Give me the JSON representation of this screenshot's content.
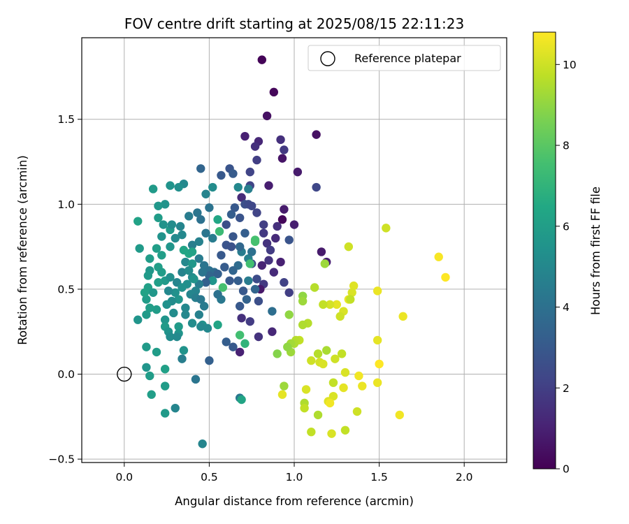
{
  "chart_data": {
    "type": "scatter",
    "title": "FOV centre drift starting at 2025/08/15 22:11:23",
    "xlabel": "Angular distance from reference (arcmin)",
    "ylabel": "Rotation from reference (arcmin)",
    "xlim": [
      -0.25,
      2.25
    ],
    "ylim": [
      -0.52,
      1.98
    ],
    "xticks": [
      0.0,
      0.5,
      1.0,
      1.5,
      2.0
    ],
    "xtick_labels": [
      "0.0",
      "0.5",
      "1.0",
      "1.5",
      "2.0"
    ],
    "yticks": [
      -0.5,
      0.0,
      0.5,
      1.0,
      1.5
    ],
    "ytick_labels": [
      "−0.5",
      "0.0",
      "0.5",
      "1.0",
      "1.5"
    ],
    "grid": true,
    "legend_position": "top-right",
    "legend": [
      "Reference platepar"
    ],
    "reference_point": {
      "x": 0.0,
      "y": 0.0
    },
    "colorbar": {
      "label": "Hours from first FF file",
      "range": [
        0,
        10.8
      ],
      "ticks": [
        0,
        2,
        4,
        6,
        8,
        10
      ],
      "tick_labels": [
        "0",
        "2",
        "4",
        "6",
        "8",
        "10"
      ],
      "colormap": "viridis"
    },
    "points": [
      [
        0.81,
        1.85,
        0.1
      ],
      [
        0.88,
        1.66,
        0.2
      ],
      [
        0.84,
        1.52,
        0.5
      ],
      [
        0.71,
        1.4,
        1.0
      ],
      [
        0.79,
        1.37,
        1.2
      ],
      [
        1.13,
        1.41,
        0.5
      ],
      [
        0.92,
        1.38,
        1.5
      ],
      [
        0.93,
        1.27,
        0.6
      ],
      [
        0.94,
        1.32,
        1.8
      ],
      [
        1.02,
        1.19,
        0.8
      ],
      [
        1.13,
        1.1,
        2.3
      ],
      [
        0.77,
        1.34,
        1.5
      ],
      [
        0.78,
        1.26,
        2.0
      ],
      [
        0.74,
        1.19,
        2.2
      ],
      [
        0.62,
        1.21,
        2.8
      ],
      [
        0.64,
        1.18,
        3.1
      ],
      [
        0.57,
        1.17,
        3.0
      ],
      [
        0.45,
        1.21,
        3.5
      ],
      [
        0.85,
        1.11,
        0.9
      ],
      [
        0.74,
        1.11,
        2.2
      ],
      [
        0.69,
        1.04,
        1.3
      ],
      [
        0.73,
        1.09,
        4.6
      ],
      [
        0.67,
        1.1,
        5.0
      ],
      [
        0.52,
        1.1,
        5.2
      ],
      [
        0.48,
        1.06,
        4.8
      ],
      [
        0.35,
        1.12,
        5.0
      ],
      [
        0.32,
        1.1,
        5.3
      ],
      [
        0.27,
        1.11,
        5.5
      ],
      [
        0.17,
        1.09,
        5.8
      ],
      [
        0.24,
        1.0,
        5.5
      ],
      [
        0.2,
        0.99,
        5.7
      ],
      [
        0.08,
        0.9,
        6.2
      ],
      [
        0.2,
        0.92,
        5.9
      ],
      [
        0.23,
        0.88,
        5.5
      ],
      [
        0.27,
        0.85,
        5.8
      ],
      [
        0.28,
        0.88,
        5.2
      ],
      [
        0.33,
        0.87,
        4.9
      ],
      [
        0.38,
        0.93,
        4.5
      ],
      [
        0.43,
        0.95,
        4.2
      ],
      [
        0.45,
        0.91,
        4.0
      ],
      [
        0.5,
        0.98,
        4.1
      ],
      [
        0.48,
        0.83,
        4.2
      ],
      [
        0.55,
        0.91,
        6.4
      ],
      [
        0.56,
        0.84,
        7.3
      ],
      [
        0.52,
        0.8,
        4.5
      ],
      [
        0.44,
        0.78,
        4.7
      ],
      [
        0.4,
        0.76,
        4.6
      ],
      [
        0.34,
        0.82,
        5.0
      ],
      [
        0.3,
        0.8,
        5.1
      ],
      [
        0.27,
        0.75,
        5.6
      ],
      [
        0.22,
        0.81,
        5.5
      ],
      [
        0.22,
        0.7,
        6.0
      ],
      [
        0.19,
        0.74,
        6.0
      ],
      [
        0.09,
        0.74,
        5.8
      ],
      [
        0.15,
        0.68,
        5.9
      ],
      [
        0.15,
        0.61,
        5.7
      ],
      [
        0.14,
        0.58,
        5.8
      ],
      [
        0.2,
        0.63,
        6.0
      ],
      [
        0.22,
        0.6,
        5.9
      ],
      [
        0.24,
        0.55,
        5.8
      ],
      [
        0.27,
        0.57,
        5.3
      ],
      [
        0.31,
        0.54,
        4.9
      ],
      [
        0.34,
        0.6,
        4.8
      ],
      [
        0.36,
        0.66,
        5.0
      ],
      [
        0.38,
        0.71,
        6.4
      ],
      [
        0.4,
        0.72,
        6.2
      ],
      [
        0.35,
        0.73,
        6.3
      ],
      [
        0.44,
        0.68,
        4.5
      ],
      [
        0.47,
        0.64,
        4.2
      ],
      [
        0.5,
        0.61,
        4.0
      ],
      [
        0.53,
        0.6,
        3.8
      ],
      [
        0.5,
        0.58,
        3.5
      ],
      [
        0.55,
        0.59,
        3.3
      ],
      [
        0.59,
        0.63,
        3.1
      ],
      [
        0.57,
        0.7,
        3.0
      ],
      [
        0.6,
        0.76,
        2.8
      ],
      [
        0.63,
        0.75,
        2.7
      ],
      [
        0.6,
        0.88,
        2.6
      ],
      [
        0.63,
        0.94,
        3.2
      ],
      [
        0.65,
        0.98,
        3.0
      ],
      [
        0.68,
        0.92,
        2.8
      ],
      [
        0.71,
        1.0,
        2.6
      ],
      [
        0.73,
        1.0,
        2.4
      ],
      [
        0.75,
        0.99,
        2.3
      ],
      [
        0.78,
        0.95,
        2.2
      ],
      [
        0.82,
        0.88,
        2.0
      ],
      [
        0.82,
        0.83,
        1.8
      ],
      [
        0.84,
        0.77,
        1.6
      ],
      [
        0.86,
        0.73,
        1.9
      ],
      [
        0.89,
        0.8,
        1.3
      ],
      [
        0.9,
        0.87,
        1.5
      ],
      [
        0.93,
        0.91,
        0.2
      ],
      [
        0.94,
        0.97,
        0.8
      ],
      [
        1.0,
        0.88,
        0.9
      ],
      [
        0.97,
        0.79,
        2.8
      ],
      [
        0.97,
        0.48,
        2.0
      ],
      [
        0.94,
        0.54,
        2.1
      ],
      [
        0.92,
        0.66,
        1.0
      ],
      [
        0.88,
        0.6,
        1.3
      ],
      [
        0.85,
        0.67,
        1.6
      ],
      [
        0.81,
        0.64,
        1.1
      ],
      [
        0.82,
        0.53,
        1.8
      ],
      [
        0.8,
        0.5,
        0.7
      ],
      [
        0.78,
        0.56,
        2.5
      ],
      [
        0.75,
        0.65,
        2.6
      ],
      [
        0.73,
        0.68,
        4.7
      ],
      [
        0.75,
        0.72,
        4.0
      ],
      [
        0.77,
        0.78,
        7.6
      ],
      [
        0.69,
        0.72,
        4.5
      ],
      [
        0.67,
        0.64,
        3.8
      ],
      [
        0.64,
        0.61,
        3.5
      ],
      [
        0.62,
        0.55,
        3.0
      ],
      [
        0.67,
        0.55,
        3.2
      ],
      [
        0.7,
        0.49,
        3.0
      ],
      [
        0.73,
        0.55,
        4.5
      ],
      [
        0.77,
        0.5,
        3.5
      ],
      [
        0.72,
        0.44,
        3.4
      ],
      [
        0.68,
        0.4,
        3.0
      ],
      [
        0.69,
        0.33,
        1.5
      ],
      [
        0.74,
        0.31,
        1.9
      ],
      [
        0.79,
        0.22,
        1.6
      ],
      [
        0.87,
        0.25,
        1.2
      ],
      [
        0.87,
        0.37,
        3.9
      ],
      [
        0.79,
        0.43,
        2.6
      ],
      [
        0.57,
        0.44,
        4.3
      ],
      [
        0.55,
        0.47,
        4.0
      ],
      [
        0.52,
        0.55,
        5.6
      ],
      [
        0.48,
        0.54,
        3.3
      ],
      [
        0.46,
        0.6,
        4.2
      ],
      [
        0.44,
        0.53,
        4.5
      ],
      [
        0.42,
        0.49,
        4.8
      ],
      [
        0.4,
        0.57,
        5.1
      ],
      [
        0.37,
        0.53,
        5.3
      ],
      [
        0.34,
        0.51,
        5.4
      ],
      [
        0.32,
        0.44,
        5.6
      ],
      [
        0.3,
        0.48,
        5.4
      ],
      [
        0.28,
        0.43,
        5.2
      ],
      [
        0.26,
        0.49,
        5.0
      ],
      [
        0.25,
        0.41,
        5.4
      ],
      [
        0.24,
        0.32,
        5.6
      ],
      [
        0.24,
        0.28,
        5.8
      ],
      [
        0.26,
        0.25,
        5.5
      ],
      [
        0.27,
        0.22,
        5.2
      ],
      [
        0.32,
        0.28,
        5.8
      ],
      [
        0.32,
        0.24,
        5.6
      ],
      [
        0.35,
        0.14,
        5.5
      ],
      [
        0.34,
        0.09,
        4.6
      ],
      [
        0.31,
        0.22,
        5.1
      ],
      [
        0.29,
        0.36,
        5.2
      ],
      [
        0.36,
        0.39,
        5.0
      ],
      [
        0.39,
        0.47,
        4.9
      ],
      [
        0.42,
        0.45,
        4.6
      ],
      [
        0.45,
        0.44,
        4.3
      ],
      [
        0.47,
        0.4,
        4.4
      ],
      [
        0.46,
        0.29,
        5.4
      ],
      [
        0.49,
        0.27,
        5.0
      ],
      [
        0.45,
        0.28,
        5.0
      ],
      [
        0.5,
        0.08,
        3.3
      ],
      [
        0.55,
        0.29,
        6.3
      ],
      [
        0.6,
        0.19,
        3.2
      ],
      [
        0.64,
        0.16,
        3.0
      ],
      [
        0.68,
        0.13,
        1.0
      ],
      [
        0.68,
        0.23,
        7.5
      ],
      [
        0.71,
        0.18,
        7.0
      ],
      [
        0.58,
        0.51,
        7.6
      ],
      [
        0.64,
        0.81,
        2.9
      ],
      [
        0.68,
        0.75,
        3.6
      ],
      [
        0.71,
        0.83,
        3.2
      ],
      [
        0.4,
        0.65,
        5.7
      ],
      [
        0.38,
        0.61,
        5.2
      ],
      [
        0.41,
        0.56,
        5.5
      ],
      [
        0.44,
        0.35,
        4.7
      ],
      [
        0.4,
        0.3,
        5.2
      ],
      [
        0.36,
        0.35,
        5.0
      ],
      [
        0.2,
        0.54,
        6.0
      ],
      [
        0.14,
        0.51,
        6.1
      ],
      [
        0.13,
        0.44,
        5.9
      ],
      [
        0.12,
        0.48,
        6.2
      ],
      [
        0.17,
        0.48,
        5.7
      ],
      [
        0.19,
        0.38,
        5.9
      ],
      [
        0.15,
        0.39,
        6.0
      ],
      [
        0.13,
        0.35,
        5.8
      ],
      [
        0.08,
        0.32,
        5.6
      ],
      [
        0.19,
        0.13,
        5.9
      ],
      [
        0.13,
        0.16,
        5.8
      ],
      [
        0.13,
        0.04,
        5.6
      ],
      [
        0.15,
        -0.01,
        5.9
      ],
      [
        0.24,
        0.03,
        6.1
      ],
      [
        0.24,
        -0.07,
        5.9
      ],
      [
        0.16,
        -0.12,
        6.0
      ],
      [
        0.24,
        -0.23,
        5.8
      ],
      [
        0.3,
        -0.2,
        4.9
      ],
      [
        0.42,
        -0.03,
        4.2
      ],
      [
        0.46,
        -0.41,
        4.9
      ],
      [
        0.68,
        -0.14,
        4.3
      ],
      [
        0.69,
        -0.15,
        6.3
      ],
      [
        0.74,
        0.65,
        7.5
      ],
      [
        0.77,
        0.79,
        7.6
      ],
      [
        1.16,
        0.72,
        0.8
      ],
      [
        1.19,
        0.66,
        0.9
      ],
      [
        1.18,
        0.65,
        9.2
      ],
      [
        1.32,
        0.75,
        10.0
      ],
      [
        1.54,
        0.86,
        10.0
      ],
      [
        1.85,
        0.69,
        10.7
      ],
      [
        1.89,
        0.57,
        10.8
      ],
      [
        1.49,
        0.49,
        10.5
      ],
      [
        1.35,
        0.52,
        10.3
      ],
      [
        1.34,
        0.48,
        10.2
      ],
      [
        1.32,
        0.44,
        10.5
      ],
      [
        1.33,
        0.44,
        9.8
      ],
      [
        1.29,
        0.37,
        10.2
      ],
      [
        1.27,
        0.34,
        10.0
      ],
      [
        1.25,
        0.41,
        10.4
      ],
      [
        1.21,
        0.41,
        10.1
      ],
      [
        1.17,
        0.41,
        9.8
      ],
      [
        1.12,
        0.51,
        9.6
      ],
      [
        1.05,
        0.46,
        9.0
      ],
      [
        1.05,
        0.43,
        9.2
      ],
      [
        0.97,
        0.35,
        9.0
      ],
      [
        1.08,
        0.3,
        9.6
      ],
      [
        1.05,
        0.29,
        9.5
      ],
      [
        1.03,
        0.2,
        9.8
      ],
      [
        1.01,
        0.2,
        9.6
      ],
      [
        1.0,
        0.18,
        9.5
      ],
      [
        0.98,
        0.18,
        9.3
      ],
      [
        0.98,
        0.13,
        9.2
      ],
      [
        0.96,
        0.16,
        9.0
      ],
      [
        0.9,
        0.12,
        8.8
      ],
      [
        1.1,
        0.08,
        10.0
      ],
      [
        1.15,
        0.07,
        10.1
      ],
      [
        1.17,
        0.06,
        10.2
      ],
      [
        1.14,
        0.12,
        9.6
      ],
      [
        1.19,
        0.14,
        9.4
      ],
      [
        1.24,
        0.09,
        10.0
      ],
      [
        1.28,
        0.12,
        9.8
      ],
      [
        1.3,
        0.01,
        10.2
      ],
      [
        1.38,
        -0.01,
        10.6
      ],
      [
        1.5,
        0.06,
        10.8
      ],
      [
        1.49,
        0.2,
        10.4
      ],
      [
        1.64,
        0.34,
        10.5
      ],
      [
        1.49,
        -0.05,
        10.5
      ],
      [
        1.4,
        -0.07,
        10.5
      ],
      [
        1.29,
        -0.08,
        10.4
      ],
      [
        1.23,
        -0.05,
        9.8
      ],
      [
        1.2,
        -0.16,
        10.3
      ],
      [
        1.23,
        -0.13,
        10.2
      ],
      [
        1.21,
        -0.17,
        10.6
      ],
      [
        1.07,
        -0.09,
        10.2
      ],
      [
        1.06,
        -0.17,
        9.5
      ],
      [
        1.06,
        -0.2,
        9.8
      ],
      [
        0.94,
        -0.07,
        9.2
      ],
      [
        0.93,
        -0.12,
        10.4
      ],
      [
        1.14,
        -0.24,
        9.5
      ],
      [
        1.1,
        -0.34,
        9.8
      ],
      [
        1.22,
        -0.35,
        10.2
      ],
      [
        1.3,
        -0.33,
        9.8
      ],
      [
        1.37,
        -0.22,
        10.0
      ],
      [
        1.62,
        -0.24,
        10.6
      ]
    ]
  }
}
